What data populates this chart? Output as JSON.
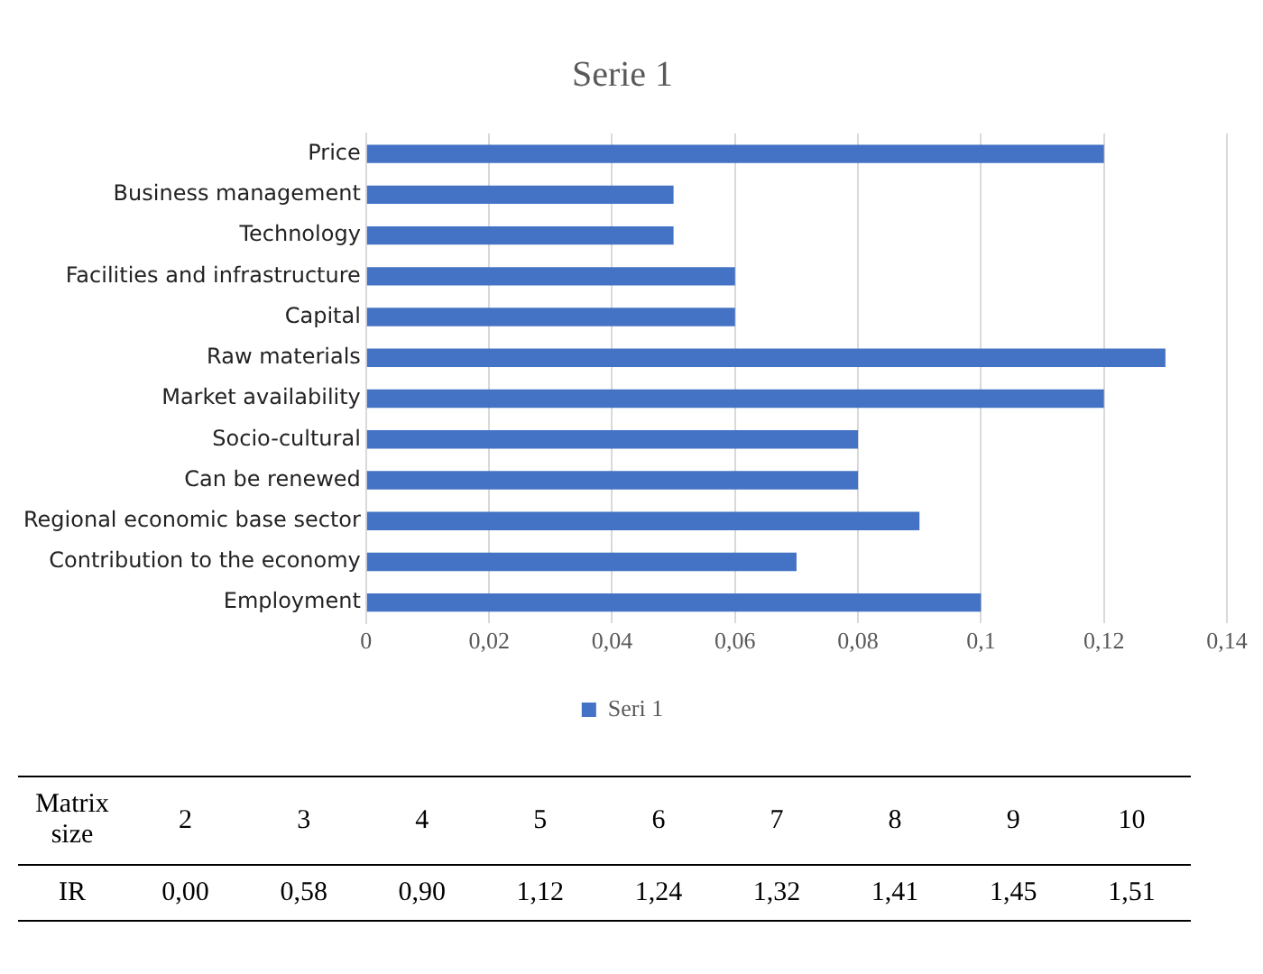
{
  "chart_data": [
    {
      "type": "bar",
      "title": "Serie 1",
      "orientation": "horizontal",
      "categories": [
        "Price",
        "Business management",
        "Technology",
        "Facilities and infrastructure",
        "Capital",
        "Raw materials",
        "Market availability",
        "Socio-cultural",
        "Can be renewed",
        "Regional economic base sector",
        "Contribution to the economy",
        "Employment"
      ],
      "series": [
        {
          "name": "Seri 1",
          "color": "#4472c4",
          "values": [
            0.12,
            0.05,
            0.05,
            0.06,
            0.06,
            0.13,
            0.12,
            0.08,
            0.08,
            0.09,
            0.07,
            0.1
          ]
        }
      ],
      "xlim": [
        0,
        0.14
      ],
      "xticks": [
        0,
        {
          "value": 0.02,
          "label": "0,02"
        },
        {
          "value": 0.04,
          "label": "0,04"
        },
        {
          "value": 0.06,
          "label": "0,06"
        },
        {
          "value": 0.08,
          "label": "0,08"
        },
        {
          "value": 0.1,
          "label": "0,1"
        },
        {
          "value": 0.12,
          "label": "0,12"
        },
        {
          "value": 0.14,
          "label": "0,14"
        }
      ],
      "grid": "x",
      "legend": "bottom",
      "annotations": [
        "Matrix size",
        "2",
        "3",
        "4",
        "5",
        "6",
        "7",
        "8",
        "9",
        "10",
        "IR",
        "0,00",
        "0,58",
        "0,90",
        "1,12",
        "1,24",
        "1,32",
        "1,41",
        "1,45",
        "1,51"
      ]
    }
  ]
}
